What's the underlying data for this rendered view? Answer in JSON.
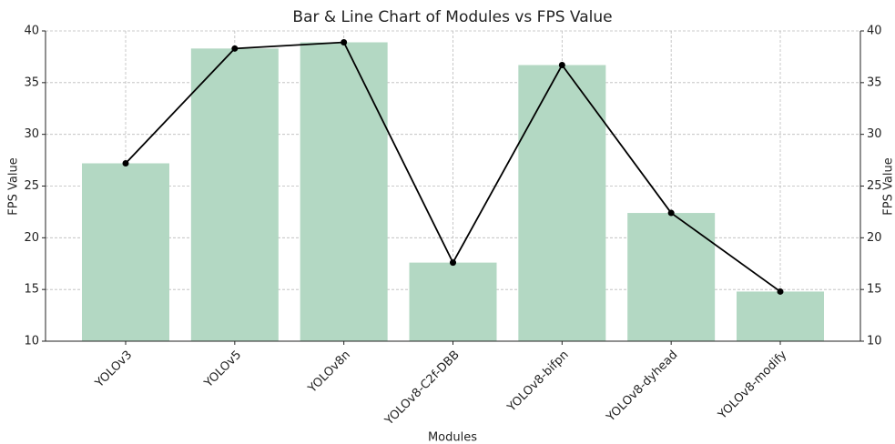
{
  "chart_data": {
    "type": "bar",
    "title": "Bar & Line Chart of Modules vs FPS Value",
    "xlabel": "Modules",
    "ylabel": "FPS Value",
    "y2label": "FPS Value",
    "categories": [
      "YOLOv3",
      "YOLOv5",
      "YOLOv8n",
      "YOLOv8-C2f-DBB",
      "YOLOv8-bifpn",
      "YOLOv8-dyhead",
      "YOLOv8-modify"
    ],
    "series": [
      {
        "type": "bar",
        "color": "#b3d8c3",
        "values": [
          27.2,
          38.3,
          38.9,
          17.6,
          36.7,
          22.4,
          14.8
        ]
      },
      {
        "type": "line",
        "color": "#000000",
        "axis": "y2",
        "values": [
          27.2,
          38.3,
          38.9,
          17.6,
          36.7,
          22.4,
          14.8
        ]
      }
    ],
    "ylim": [
      10,
      40
    ],
    "yticks": [
      10,
      15,
      20,
      25,
      30,
      35,
      40
    ],
    "y2lim": [
      10,
      40
    ],
    "y2ticks": [
      10,
      15,
      20,
      25,
      30,
      35,
      40
    ],
    "grid": true
  }
}
